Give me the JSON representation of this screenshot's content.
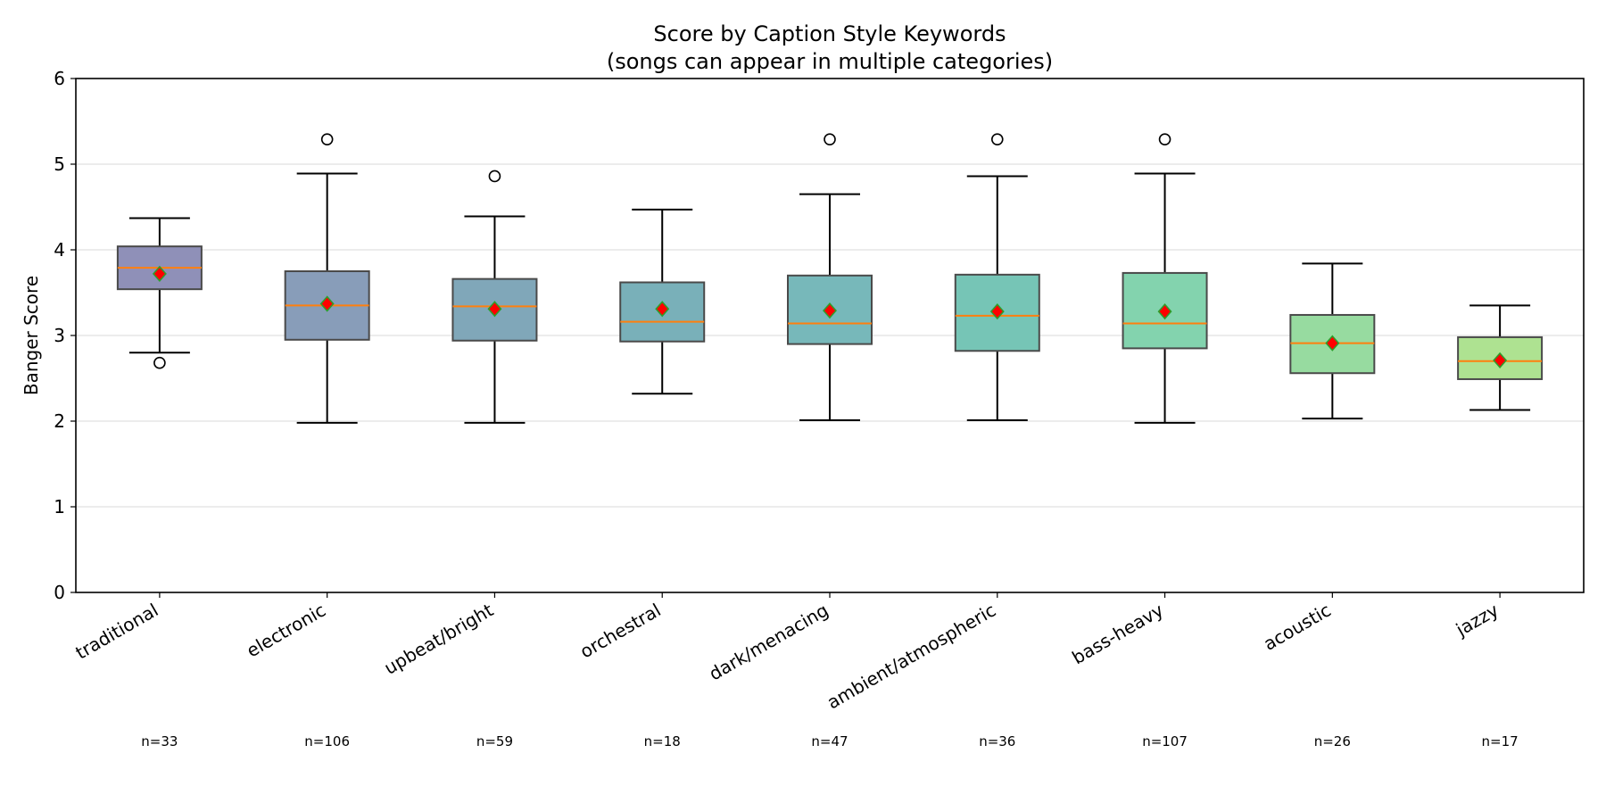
{
  "chart_data": {
    "type": "box",
    "title": "Score by Caption Style Keywords",
    "subtitle": "(songs can appear in multiple categories)",
    "xlabel": "",
    "ylabel": "Banger Score",
    "ylim": [
      0,
      6
    ],
    "yticks": [
      "0",
      "1",
      "2",
      "3",
      "4",
      "5",
      "6"
    ],
    "grid": "horizontal",
    "colors": {
      "median": "#ff7f0e",
      "mean_fill": "#ff0000",
      "mean_edge": "#2ca02c",
      "box_edge": "#4a4a4a"
    },
    "categories": [
      {
        "label": "traditional",
        "n": "n=33",
        "color": "#8f90b8",
        "whisker_low": 2.8,
        "q1": 3.54,
        "median": 3.79,
        "q3": 4.04,
        "whisker_high": 4.37,
        "mean": 3.72,
        "outliers": [
          2.68
        ]
      },
      {
        "label": "electronic",
        "n": "n=106",
        "color": "#889db9",
        "whisker_low": 1.98,
        "q1": 2.95,
        "median": 3.35,
        "q3": 3.75,
        "whisker_high": 4.89,
        "mean": 3.37,
        "outliers": [
          5.29
        ]
      },
      {
        "label": "upbeat/bright",
        "n": "n=59",
        "color": "#80a7b9",
        "whisker_low": 1.98,
        "q1": 2.94,
        "median": 3.34,
        "q3": 3.66,
        "whisker_high": 4.39,
        "mean": 3.31,
        "outliers": [
          4.86
        ]
      },
      {
        "label": "orchestral",
        "n": "n=18",
        "color": "#79b0b9",
        "whisker_low": 2.32,
        "q1": 2.93,
        "median": 3.16,
        "q3": 3.62,
        "whisker_high": 4.47,
        "mean": 3.31,
        "outliers": []
      },
      {
        "label": "dark/menacing",
        "n": "n=47",
        "color": "#77b8ba",
        "whisker_low": 2.01,
        "q1": 2.9,
        "median": 3.14,
        "q3": 3.7,
        "whisker_high": 4.65,
        "mean": 3.29,
        "outliers": [
          5.29
        ]
      },
      {
        "label": "ambient/atmospheric",
        "n": "n=36",
        "color": "#76c5b6",
        "whisker_low": 2.01,
        "q1": 2.82,
        "median": 3.23,
        "q3": 3.71,
        "whisker_high": 4.86,
        "mean": 3.28,
        "outliers": [
          5.29
        ]
      },
      {
        "label": "bass-heavy",
        "n": "n=107",
        "color": "#83d3ae",
        "whisker_low": 1.98,
        "q1": 2.85,
        "median": 3.14,
        "q3": 3.73,
        "whisker_high": 4.89,
        "mean": 3.28,
        "outliers": [
          5.29
        ]
      },
      {
        "label": "acoustic",
        "n": "n=26",
        "color": "#97dba0",
        "whisker_low": 2.03,
        "q1": 2.56,
        "median": 2.91,
        "q3": 3.24,
        "whisker_high": 3.84,
        "mean": 2.91,
        "outliers": []
      },
      {
        "label": "jazzy",
        "n": "n=17",
        "color": "#aee291",
        "whisker_low": 2.13,
        "q1": 2.49,
        "median": 2.7,
        "q3": 2.98,
        "whisker_high": 3.35,
        "mean": 2.71,
        "outliers": []
      }
    ]
  }
}
